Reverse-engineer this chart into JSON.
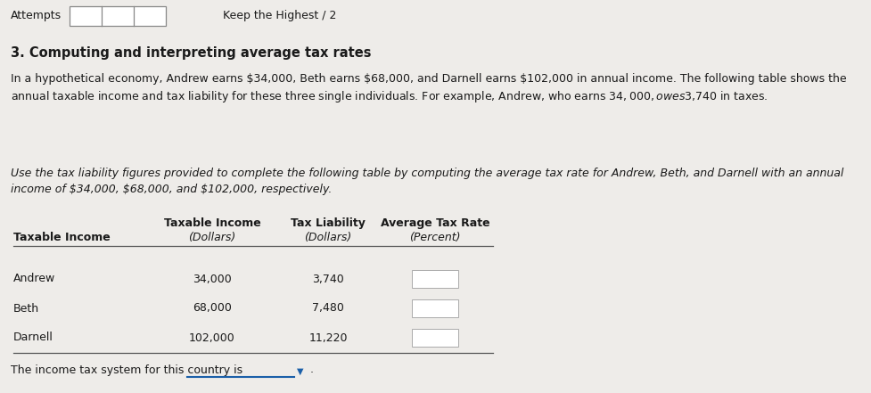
{
  "title_attempts": "Attempts",
  "title_keep": "Keep the Highest / 2",
  "section_title": "3. Computing and interpreting average tax rates",
  "paragraph1_line1": "In a hypothetical economy, Andrew earns $34,000, Beth earns $68,000, and Darnell earns $102,000 in annual income. The following table shows the",
  "paragraph1_line2": "annual taxable income and tax liability for these three single individuals. For example, Andrew, who earns $34,000, owes $3,740 in taxes.",
  "paragraph2_line1": "Use the tax liability figures provided to complete the following table by computing the average tax rate for Andrew, Beth, and Darnell with an annual",
  "paragraph2_line2": "income of $34,000, $68,000, and $102,000, respectively.",
  "col_header1": [
    "Taxable Income",
    "Tax Liability",
    "Average Tax Rate"
  ],
  "col_header2_row1": "Taxable Income",
  "col_header2_col1": "(Dollars)",
  "col_header2_col2": "(Dollars)",
  "col_header2_col3": "(Percent)",
  "rows": [
    [
      "Andrew",
      "34,000",
      "3,740"
    ],
    [
      "Beth",
      "68,000",
      "7,480"
    ],
    [
      "Darnell",
      "102,000",
      "11,220"
    ]
  ],
  "footer": "The income tax system for this country is",
  "bg_color": "#eeece9",
  "text_color": "#1a1a1a",
  "box_edge_color": "#aaaaaa",
  "line_color": "#555555",
  "arrow_color": "#1a5fa8",
  "underline_color": "#1a5fa8"
}
